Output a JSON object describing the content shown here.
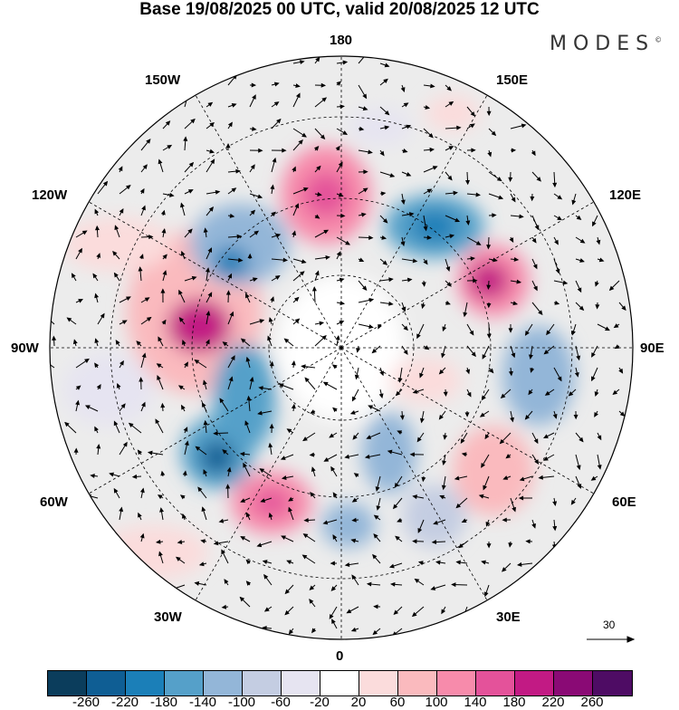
{
  "title": "Base 19/08/2025 00 UTC, valid 20/08/2025 12 UTC",
  "logo": "MODES",
  "logo_mark": "©",
  "lon_labels": {
    "top": "180",
    "bottom": "0",
    "left": "90W",
    "right": "90E",
    "l150w": "150W",
    "l150e": "150E",
    "l120w": "120W",
    "l120e": "120E",
    "l60w": "60W",
    "l60e": "60E",
    "l30w": "30W",
    "l30e": "30E"
  },
  "reference_vector": "30",
  "colorbar": {
    "colors": [
      "#0b3d5c",
      "#0f5e94",
      "#1b7fb8",
      "#55a0c9",
      "#93b6d8",
      "#c4cde2",
      "#e6e4f1",
      "#ffffff",
      "#fbdcdc",
      "#fababe",
      "#f78bab",
      "#e4529a",
      "#c21a84",
      "#8a0a75",
      "#4e0c64"
    ],
    "ticks": [
      "-260",
      "-220",
      "-180",
      "-140",
      "-100",
      "-60",
      "-20",
      "20",
      "60",
      "100",
      "140",
      "180",
      "220",
      "260"
    ]
  }
}
